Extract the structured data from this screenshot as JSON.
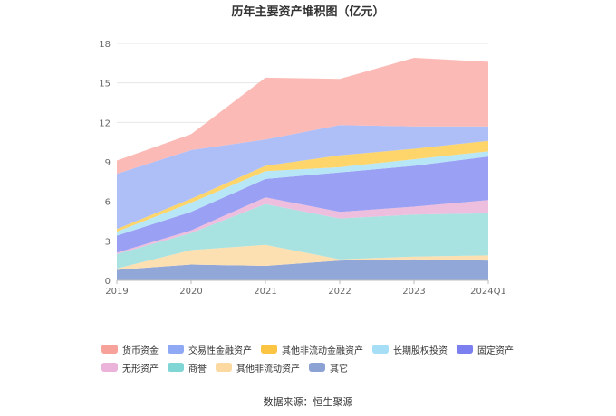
{
  "chart_data": {
    "type": "area",
    "stacked": true,
    "title": "历年主要资产堆积图（亿元）",
    "categories": [
      "2019",
      "2020",
      "2021",
      "2022",
      "2023",
      "2024Q1"
    ],
    "y_ticks": [
      "0",
      "3",
      "6",
      "9",
      "12",
      "15",
      "18"
    ],
    "ylim": [
      0,
      18
    ],
    "grid": true,
    "legend_position": "bottom",
    "series": [
      {
        "name": "其它",
        "color": "#91a7d8",
        "values": [
          0.8,
          1.2,
          1.1,
          1.5,
          1.6,
          1.5
        ]
      },
      {
        "name": "其他非流动资产",
        "color": "#fde0b2",
        "values": [
          0.1,
          1.1,
          1.6,
          0.1,
          0.2,
          0.4
        ]
      },
      {
        "name": "商誉",
        "color": "#a8e2e1",
        "values": [
          1.1,
          1.3,
          3.1,
          3.1,
          3.2,
          3.2
        ]
      },
      {
        "name": "无形资产",
        "color": "#eebede",
        "values": [
          0.1,
          0.2,
          0.5,
          0.5,
          0.6,
          1.0
        ]
      },
      {
        "name": "固定资产",
        "color": "#9aa0f3",
        "values": [
          1.3,
          1.4,
          1.4,
          3.0,
          3.1,
          3.3
        ]
      },
      {
        "name": "长期股权投资",
        "color": "#b7e6f7",
        "values": [
          0.3,
          0.7,
          0.6,
          0.4,
          0.5,
          0.4
        ]
      },
      {
        "name": "其他非流动金融资产",
        "color": "#fdd56a",
        "values": [
          0.2,
          0.3,
          0.4,
          0.9,
          0.8,
          0.8
        ]
      },
      {
        "name": "交易性金融资产",
        "color": "#aebff8",
        "values": [
          4.2,
          3.7,
          2.0,
          2.3,
          1.7,
          1.1
        ]
      },
      {
        "name": "货币资金",
        "color": "#fbbab5",
        "values": [
          1.0,
          1.2,
          4.7,
          3.5,
          5.2,
          4.9
        ]
      }
    ]
  },
  "legend": {
    "items": [
      {
        "label": "货币资金",
        "color": "#f6a19a"
      },
      {
        "label": "交易性金融资产",
        "color": "#8fa9f5"
      },
      {
        "label": "其他非流动金融资产",
        "color": "#fbc443"
      },
      {
        "label": "长期股权投资",
        "color": "#a6def5"
      },
      {
        "label": "固定资产",
        "color": "#7b7ff0"
      },
      {
        "label": "无形资产",
        "color": "#ebb3da"
      },
      {
        "label": "商誉",
        "color": "#80d6d4"
      },
      {
        "label": "其他非流动资产",
        "color": "#fcd9a0"
      },
      {
        "label": "其它",
        "color": "#8da2d4"
      }
    ]
  },
  "source": "数据来源：恒生聚源"
}
